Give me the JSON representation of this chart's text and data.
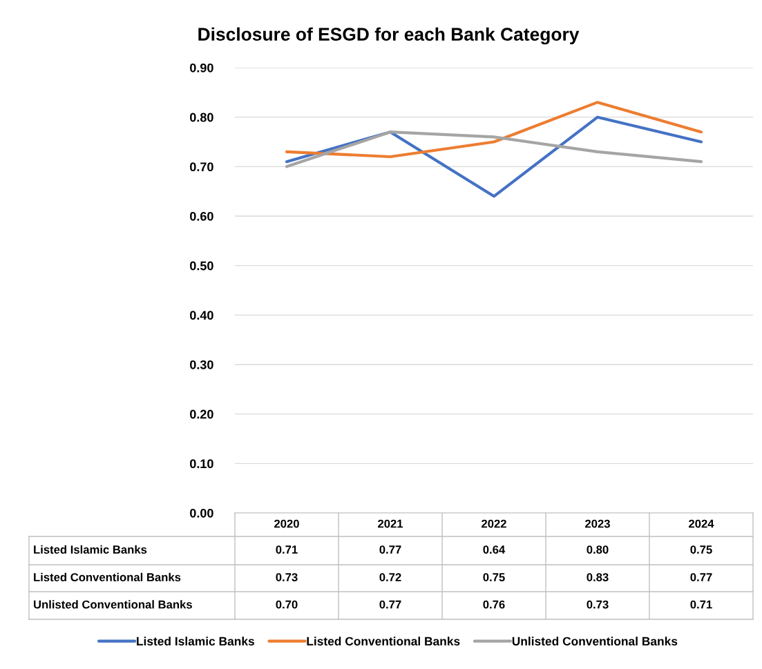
{
  "chart_data": {
    "type": "line",
    "title": "Disclosure of ESGD for each Bank Category",
    "categories": [
      "2020",
      "2021",
      "2022",
      "2023",
      "2024"
    ],
    "series": [
      {
        "name": "Listed Islamic Banks",
        "color": "#4472c4",
        "values": [
          0.71,
          0.77,
          0.64,
          0.8,
          0.75
        ],
        "value_labels": [
          "0.71",
          "0.77",
          "0.64",
          "0.80",
          "0.75"
        ]
      },
      {
        "name": "Listed Conventional Banks",
        "color": "#ed7d31",
        "values": [
          0.73,
          0.72,
          0.75,
          0.83,
          0.77
        ],
        "value_labels": [
          "0.73",
          "0.72",
          "0.75",
          "0.83",
          "0.77"
        ]
      },
      {
        "name": "Unlisted Conventional Banks",
        "color": "#a5a5a5",
        "values": [
          0.7,
          0.77,
          0.76,
          0.73,
          0.71
        ],
        "value_labels": [
          "0.70",
          "0.77",
          "0.76",
          "0.73",
          "0.71"
        ]
      }
    ],
    "ylim": [
      0,
      0.9
    ],
    "yticks": [
      {
        "value": 0,
        "label": "0.00"
      },
      {
        "value": 0.1,
        "label": "0.10"
      },
      {
        "value": 0.2,
        "label": "0.20"
      },
      {
        "value": 0.3,
        "label": "0.30"
      },
      {
        "value": 0.4,
        "label": "0.40"
      },
      {
        "value": 0.5,
        "label": "0.50"
      },
      {
        "value": 0.6,
        "label": "0.60"
      },
      {
        "value": 0.7,
        "label": "0.70"
      },
      {
        "value": 0.8,
        "label": "0.80"
      },
      {
        "value": 0.9,
        "label": "0.90"
      }
    ],
    "grid": "y",
    "legend": "bottom",
    "marker": "none",
    "line_style": "solid"
  }
}
